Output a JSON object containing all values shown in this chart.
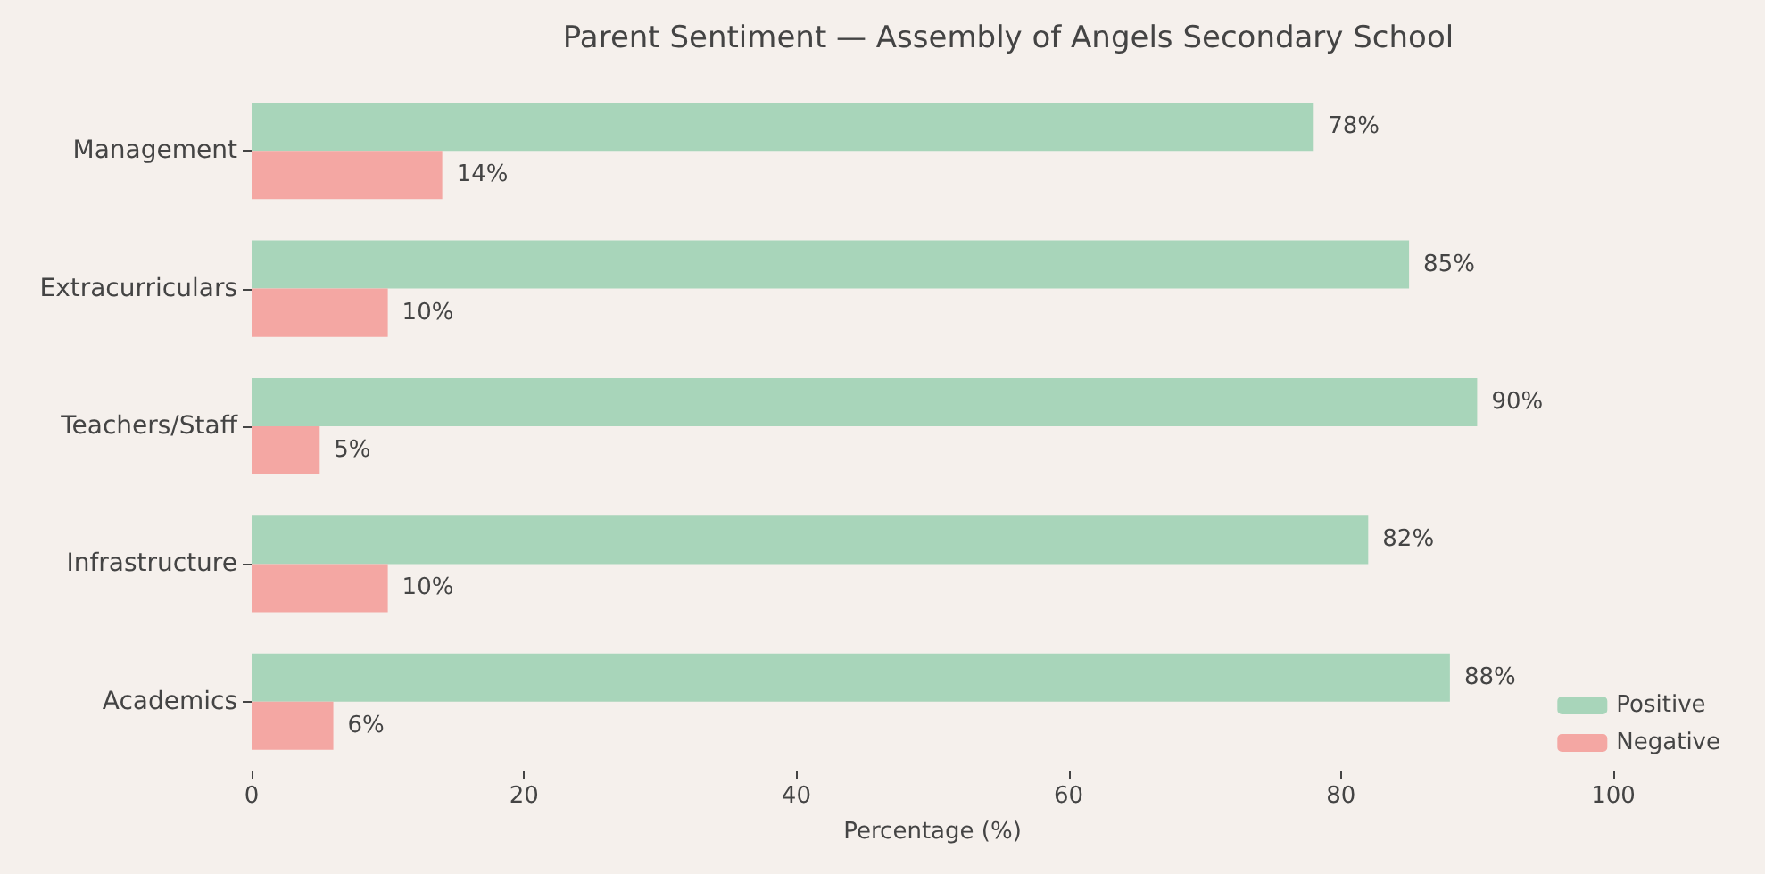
{
  "chart_data": {
    "type": "bar",
    "orientation": "horizontal",
    "title": "Parent Sentiment — Assembly of Angels Secondary School",
    "xlabel": "Percentage (%)",
    "categories": [
      "Management",
      "Extracurriculars",
      "Teachers/Staff",
      "Infrastructure",
      "Academics"
    ],
    "series": [
      {
        "name": "Positive",
        "color": "#a8d5ba",
        "values": [
          78,
          85,
          90,
          82,
          88
        ],
        "value_labels": [
          "78%",
          "85%",
          "90%",
          "82%",
          "88%"
        ]
      },
      {
        "name": "Negative",
        "color": "#f4a7a3",
        "values": [
          14,
          10,
          5,
          10,
          6
        ],
        "value_labels": [
          "14%",
          "10%",
          "5%",
          "10%",
          "6%"
        ]
      }
    ],
    "xlim": [
      0,
      100
    ],
    "xticks": [
      0,
      20,
      40,
      60,
      80,
      100
    ],
    "grid": false,
    "legend": "bottom right"
  }
}
